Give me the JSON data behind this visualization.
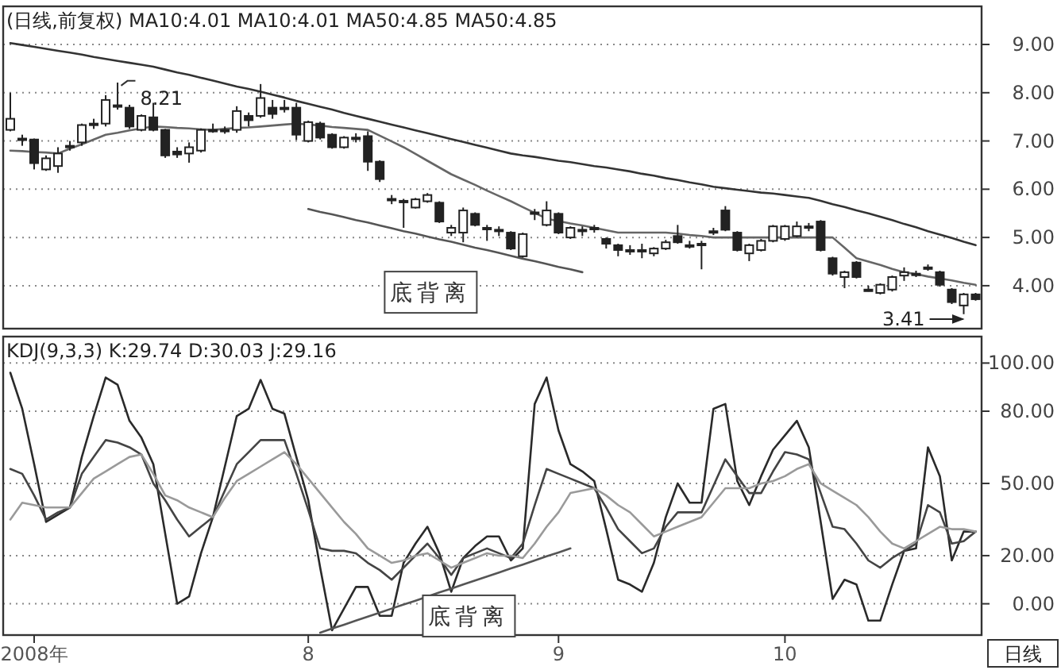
{
  "chart_data": [
    {
      "type": "candlestick",
      "title": "(日线,前复权) MA10:4.01 MA10:4.01 MA50:4.85 MA50:4.85",
      "color": "#222222",
      "categories": [
        null,
        null,
        null,
        null,
        null,
        null,
        null,
        null,
        null,
        null,
        null,
        null,
        null,
        null,
        null,
        null,
        null,
        null,
        null,
        null,
        null,
        null,
        null,
        null,
        null,
        null,
        null,
        null,
        null,
        null,
        null,
        null,
        null,
        null,
        null,
        null,
        null,
        null,
        null,
        null,
        null,
        null,
        null,
        null,
        null,
        null,
        null,
        null,
        null,
        null,
        null,
        null,
        null,
        null,
        null,
        null,
        null,
        null,
        null,
        null,
        null,
        null,
        null,
        null,
        null,
        null,
        null,
        null,
        null,
        null,
        null,
        null,
        null,
        null,
        null,
        null,
        null,
        null,
        null,
        null,
        null,
        null
      ],
      "ohlc": [
        [
          7.23,
          8.0,
          7.2,
          7.46
        ],
        [
          7.05,
          7.13,
          6.9,
          7.03
        ],
        [
          7.03,
          7.05,
          6.41,
          6.54
        ],
        [
          6.41,
          6.7,
          6.38,
          6.64
        ],
        [
          6.48,
          6.87,
          6.34,
          6.74
        ],
        [
          6.88,
          7.0,
          6.8,
          6.9
        ],
        [
          6.97,
          7.36,
          6.9,
          7.33
        ],
        [
          7.34,
          7.46,
          7.25,
          7.36
        ],
        [
          7.36,
          7.95,
          7.3,
          7.85
        ],
        [
          7.74,
          8.21,
          7.65,
          7.72
        ],
        [
          7.69,
          7.75,
          7.25,
          7.3
        ],
        [
          7.23,
          7.55,
          7.2,
          7.52
        ],
        [
          7.49,
          7.79,
          7.2,
          7.23
        ],
        [
          7.23,
          7.25,
          6.65,
          6.7
        ],
        [
          6.78,
          6.87,
          6.65,
          6.72
        ],
        [
          6.74,
          6.97,
          6.55,
          6.87
        ],
        [
          6.8,
          7.26,
          6.76,
          7.23
        ],
        [
          7.21,
          7.36,
          7.17,
          7.23
        ],
        [
          7.22,
          7.3,
          7.15,
          7.23
        ],
        [
          7.23,
          7.72,
          7.17,
          7.62
        ],
        [
          7.52,
          7.59,
          7.3,
          7.43
        ],
        [
          7.52,
          8.18,
          7.48,
          7.89
        ],
        [
          7.69,
          7.85,
          7.46,
          7.56
        ],
        [
          7.67,
          7.85,
          7.59,
          7.69
        ],
        [
          7.69,
          7.79,
          7.02,
          7.13
        ],
        [
          7.0,
          7.42,
          6.97,
          7.39
        ],
        [
          7.36,
          7.4,
          7.03,
          7.07
        ],
        [
          7.13,
          7.16,
          6.84,
          6.87
        ],
        [
          6.87,
          7.1,
          6.84,
          7.07
        ],
        [
          7.05,
          7.16,
          6.97,
          7.07
        ],
        [
          7.1,
          7.2,
          6.38,
          6.57
        ],
        [
          6.57,
          6.6,
          6.15,
          6.21
        ],
        [
          5.8,
          5.88,
          5.69,
          5.79
        ],
        [
          5.76,
          5.8,
          5.2,
          5.75
        ],
        [
          5.62,
          5.82,
          5.6,
          5.79
        ],
        [
          5.75,
          5.92,
          5.72,
          5.88
        ],
        [
          5.72,
          5.75,
          5.3,
          5.33
        ],
        [
          5.1,
          5.26,
          5.03,
          5.2
        ],
        [
          5.1,
          5.62,
          4.9,
          5.56
        ],
        [
          5.49,
          5.52,
          5.23,
          5.26
        ],
        [
          5.19,
          5.26,
          4.93,
          5.2
        ],
        [
          5.15,
          5.23,
          5.03,
          5.16
        ],
        [
          5.1,
          5.13,
          4.74,
          4.77
        ],
        [
          4.61,
          5.1,
          4.58,
          5.07
        ],
        [
          5.5,
          5.59,
          5.36,
          5.52
        ],
        [
          5.26,
          5.75,
          5.23,
          5.56
        ],
        [
          5.49,
          5.52,
          5.07,
          5.1
        ],
        [
          5.0,
          5.23,
          4.97,
          5.2
        ],
        [
          5.15,
          5.23,
          5.03,
          5.16
        ],
        [
          5.19,
          5.26,
          5.1,
          5.2
        ],
        [
          4.97,
          5.0,
          4.77,
          4.87
        ],
        [
          4.84,
          4.87,
          4.61,
          4.74
        ],
        [
          4.73,
          4.84,
          4.64,
          4.74
        ],
        [
          4.73,
          4.87,
          4.57,
          4.74
        ],
        [
          4.67,
          4.8,
          4.61,
          4.77
        ],
        [
          4.77,
          4.95,
          4.74,
          4.9
        ],
        [
          5.03,
          5.26,
          4.87,
          4.9
        ],
        [
          4.83,
          4.93,
          4.77,
          4.84
        ],
        [
          4.86,
          4.93,
          4.34,
          4.87
        ],
        [
          5.12,
          5.2,
          5.05,
          5.13
        ],
        [
          5.56,
          5.65,
          5.13,
          5.16
        ],
        [
          5.1,
          5.13,
          4.71,
          4.74
        ],
        [
          4.67,
          4.87,
          4.51,
          4.84
        ],
        [
          4.74,
          4.97,
          4.71,
          4.93
        ],
        [
          4.93,
          5.26,
          4.9,
          5.23
        ],
        [
          4.97,
          5.26,
          4.93,
          5.23
        ],
        [
          5.03,
          5.33,
          5.0,
          5.23
        ],
        [
          5.22,
          5.3,
          5.13,
          5.23
        ],
        [
          5.33,
          5.36,
          4.71,
          4.74
        ],
        [
          4.57,
          4.6,
          4.21,
          4.25
        ],
        [
          4.18,
          4.31,
          3.95,
          4.28
        ],
        [
          4.48,
          4.51,
          4.15,
          4.18
        ],
        [
          3.91,
          4.0,
          3.88,
          3.92
        ],
        [
          3.85,
          4.05,
          3.82,
          4.02
        ],
        [
          3.92,
          4.21,
          3.88,
          4.18
        ],
        [
          4.21,
          4.38,
          4.1,
          4.28
        ],
        [
          4.24,
          4.31,
          4.18,
          4.25
        ],
        [
          4.37,
          4.44,
          4.31,
          4.38
        ],
        [
          4.28,
          4.31,
          3.98,
          4.02
        ],
        [
          3.92,
          3.95,
          3.62,
          3.66
        ],
        [
          3.59,
          3.85,
          3.41,
          3.82
        ],
        [
          3.82,
          3.85,
          3.69,
          3.72
        ]
      ],
      "series": [
        {
          "type": "line",
          "color": "#333333",
          "values": [
            9.03,
            8.99,
            8.95,
            8.91,
            8.87,
            8.83,
            8.79,
            8.74,
            8.7,
            8.66,
            8.62,
            8.58,
            8.54,
            8.48,
            8.42,
            8.37,
            8.31,
            8.25,
            8.19,
            8.13,
            8.08,
            8.02,
            7.96,
            7.9,
            7.83,
            7.77,
            7.71,
            7.65,
            7.58,
            7.52,
            7.46,
            7.4,
            7.34,
            7.28,
            7.22,
            7.16,
            7.1,
            7.04,
            6.98,
            6.92,
            6.86,
            6.8,
            6.74,
            6.7,
            6.67,
            6.63,
            6.59,
            6.56,
            6.52,
            6.48,
            6.45,
            6.41,
            6.37,
            6.32,
            6.28,
            6.23,
            6.19,
            6.14,
            6.1,
            6.05,
            6.02,
            5.99,
            5.96,
            5.93,
            5.91,
            5.88,
            5.85,
            5.82,
            5.76,
            5.69,
            5.63,
            5.56,
            5.5,
            5.43,
            5.36,
            5.28,
            5.21,
            5.13,
            5.06,
            4.99,
            4.91,
            4.84
          ]
        },
        {
          "type": "line",
          "color": "#666666",
          "values": [
            6.8,
            6.79,
            6.77,
            6.76,
            6.74,
            6.84,
            6.93,
            7.03,
            7.13,
            7.17,
            7.22,
            7.26,
            7.3,
            7.29,
            7.27,
            7.26,
            7.24,
            7.23,
            7.25,
            7.27,
            7.28,
            7.3,
            7.32,
            7.34,
            7.36,
            7.34,
            7.32,
            7.29,
            7.27,
            7.25,
            7.23,
            7.11,
            6.99,
            6.87,
            6.73,
            6.59,
            6.45,
            6.31,
            6.2,
            6.09,
            5.97,
            5.86,
            5.75,
            5.63,
            5.51,
            5.39,
            5.34,
            5.29,
            5.25,
            5.2,
            5.15,
            5.1,
            5.1,
            5.1,
            5.1,
            5.1,
            5.08,
            5.05,
            5.03,
            5.0,
            5.0,
            5.0,
            5.0,
            5.0,
            5.0,
            5.0,
            5.0,
            5.0,
            5.0,
            5.0,
            4.79,
            4.57,
            4.5,
            4.43,
            4.35,
            4.28,
            4.24,
            4.19,
            4.15,
            4.11,
            4.06,
            4.02
          ]
        },
        {
          "type": "line",
          "color": "#555555",
          "values": [
            null,
            null,
            null,
            null,
            null,
            null,
            null,
            null,
            null,
            null,
            null,
            null,
            null,
            null,
            null,
            null,
            null,
            null,
            null,
            null,
            null,
            null,
            null,
            null,
            null,
            5.59,
            5.53,
            5.48,
            5.42,
            5.36,
            5.31,
            5.25,
            5.19,
            5.13,
            5.08,
            5.02,
            4.96,
            4.91,
            4.85,
            4.79,
            4.74,
            4.68,
            4.62,
            4.56,
            4.51,
            4.45,
            4.39,
            4.34,
            4.28,
            null,
            null,
            null,
            null,
            null,
            null,
            null,
            null,
            null,
            null,
            null,
            null,
            null,
            null,
            null,
            null,
            null,
            null,
            null,
            null,
            null,
            null,
            null,
            null,
            null,
            null,
            null,
            null,
            null,
            null,
            null,
            null,
            null
          ]
        }
      ],
      "ylim": [
        3.11,
        9.79
      ],
      "yticks": [
        {
          "value": 4,
          "label": "4.00"
        },
        {
          "value": 5,
          "label": "5.00"
        },
        {
          "value": 6,
          "label": "6.00"
        },
        {
          "value": 7,
          "label": "7.00"
        },
        {
          "value": 8,
          "label": "8.00"
        },
        {
          "value": 9,
          "label": "9.00"
        }
      ],
      "tick_labels": "y",
      "grid": "y",
      "annotations": [
        "8.21",
        "3.41",
        "底背离"
      ]
    },
    {
      "type": "line",
      "title": "KDJ(9,3,3) K:29.74 D:30.03 J:29.16",
      "categories": [
        null,
        null,
        "2008年",
        null,
        null,
        null,
        null,
        null,
        null,
        null,
        null,
        null,
        null,
        null,
        null,
        null,
        null,
        null,
        null,
        null,
        null,
        null,
        null,
        null,
        null,
        "8",
        null,
        null,
        null,
        null,
        null,
        null,
        null,
        null,
        null,
        null,
        null,
        null,
        null,
        null,
        null,
        null,
        null,
        null,
        null,
        null,
        "9",
        null,
        null,
        null,
        null,
        null,
        null,
        null,
        null,
        null,
        null,
        null,
        null,
        null,
        null,
        null,
        null,
        null,
        null,
        "10",
        null,
        null,
        null,
        null,
        null,
        null,
        null,
        null,
        null,
        null,
        null,
        null,
        null,
        null,
        null,
        null
      ],
      "series": [
        {
          "color": "#2a2a2a",
          "values": [
            96,
            81,
            58,
            34,
            37,
            40,
            61,
            78,
            94,
            91,
            76,
            69,
            58,
            29,
            0,
            3,
            21,
            36,
            57,
            78,
            81,
            93,
            81,
            79,
            61,
            43,
            15,
            -11,
            -2,
            7,
            7,
            -5,
            -5,
            17,
            25,
            32,
            21,
            5,
            19,
            24,
            28,
            28,
            18,
            23,
            83,
            94,
            72,
            58,
            55,
            51,
            31,
            10,
            8,
            5,
            17,
            36,
            50,
            42,
            42,
            81,
            83,
            51,
            41,
            53,
            64,
            70,
            76,
            65,
            34,
            2,
            10,
            8,
            -7,
            -7,
            8,
            22,
            23,
            65,
            53,
            18,
            30,
            30
          ]
        },
        {
          "color": "#444444",
          "values": [
            56,
            54,
            45,
            35,
            38,
            40,
            54,
            61,
            68,
            67,
            65,
            62,
            50,
            43,
            35,
            28,
            32,
            36,
            47,
            58,
            63,
            68,
            68,
            68,
            54,
            39,
            23,
            22,
            22,
            21,
            17,
            14,
            10,
            15,
            20,
            25,
            19,
            12,
            19,
            21,
            23,
            21,
            19,
            25,
            41,
            56,
            54,
            52,
            50,
            48,
            40,
            31,
            26,
            21,
            23,
            32,
            38,
            38,
            38,
            49,
            60,
            53,
            46,
            46,
            55,
            63,
            62,
            60,
            46,
            32,
            31,
            25,
            18,
            15,
            19,
            22,
            25,
            41,
            38,
            25,
            26,
            30
          ]
        },
        {
          "color": "#9a9a9a",
          "values": [
            35,
            42,
            41,
            40,
            40,
            40,
            46,
            52,
            55,
            58,
            61,
            62,
            54,
            45,
            43,
            40,
            38,
            36,
            44,
            51,
            54,
            57,
            60,
            63,
            58,
            52,
            46,
            40,
            34,
            29,
            23,
            20,
            17,
            18,
            20,
            21,
            18,
            15,
            17,
            19,
            21,
            20,
            20,
            19,
            25,
            32,
            38,
            46,
            47,
            48,
            45,
            41,
            38,
            33,
            28,
            30,
            32,
            34,
            36,
            42,
            48,
            48,
            48,
            50,
            51,
            53,
            56,
            58,
            50,
            47,
            44,
            41,
            36,
            30,
            25,
            23,
            26,
            29,
            32,
            31,
            31,
            30
          ]
        },
        {
          "color": "#555555",
          "values": [
            null,
            null,
            null,
            null,
            null,
            null,
            null,
            null,
            null,
            null,
            null,
            null,
            null,
            null,
            null,
            null,
            null,
            null,
            null,
            null,
            null,
            null,
            null,
            null,
            null,
            null,
            -12,
            -10.3,
            -8.7,
            -7,
            -5.3,
            -3.7,
            -2,
            -0.3,
            1.3,
            3,
            4.7,
            6.3,
            8,
            9.7,
            11.3,
            13,
            14.7,
            16.3,
            18,
            19.7,
            21.3,
            23,
            null,
            null,
            null,
            null,
            null,
            null,
            null,
            null,
            null,
            null,
            null,
            null,
            null,
            null,
            null,
            null,
            null,
            null,
            null,
            null,
            null,
            null,
            null,
            null,
            null,
            null,
            null,
            null,
            null,
            null,
            null,
            null,
            null,
            null
          ]
        }
      ],
      "ylim": [
        -13,
        111
      ],
      "yticks": [
        {
          "value": 0,
          "label": "0.00"
        },
        {
          "value": 20,
          "label": "20.00"
        },
        {
          "value": 50,
          "label": "50.00"
        },
        {
          "value": 80,
          "label": "80.00"
        },
        {
          "value": 100,
          "label": "100.00"
        }
      ],
      "grid": "y",
      "annotations": [
        "底背离",
        "日线"
      ]
    }
  ]
}
